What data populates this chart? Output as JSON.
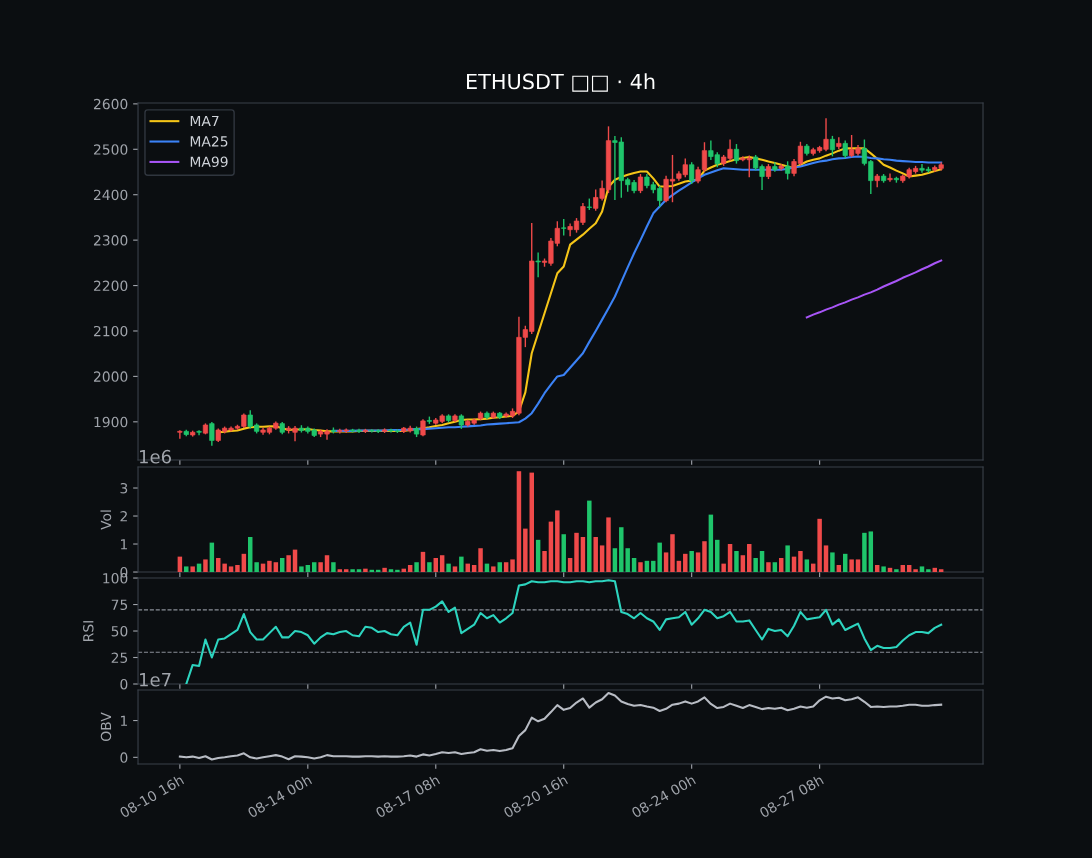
{
  "chart_data": [
    {
      "type": "candlestick",
      "title": "ETHUSDT □□ · 4h",
      "categories": [
        null,
        null,
        null,
        null,
        null,
        null,
        null,
        null,
        null,
        null,
        null,
        null,
        null,
        null,
        null,
        null,
        null,
        null,
        null,
        null,
        null,
        null,
        null,
        null,
        null,
        null,
        null,
        null,
        null,
        null,
        null,
        null,
        null,
        null,
        null,
        null,
        null,
        null,
        null,
        null,
        null,
        null,
        null,
        null,
        null,
        null,
        null,
        null,
        null,
        null,
        null,
        null,
        null,
        null,
        null,
        null,
        null,
        null,
        null,
        null,
        null,
        null,
        null,
        null,
        null,
        null,
        null,
        null,
        null,
        null,
        null,
        null,
        null,
        null,
        null,
        null,
        null,
        null,
        null,
        null,
        null,
        null,
        null,
        null,
        null,
        null,
        null,
        null,
        null,
        null,
        null,
        null,
        null,
        null,
        null,
        null,
        null,
        null,
        null,
        null,
        null,
        null,
        null,
        null,
        null,
        null,
        null,
        null,
        null,
        null,
        null,
        null,
        null,
        null,
        null,
        null,
        null,
        null,
        null,
        null
      ],
      "ohlc": [
        [
          1877,
          1880,
          1864,
          1879
        ],
        [
          1879,
          1881,
          1870,
          1872
        ],
        [
          1871,
          1879,
          1869,
          1877
        ],
        [
          1879,
          1880,
          1872,
          1877
        ],
        [
          1875,
          1895,
          1874,
          1893
        ],
        [
          1896,
          1898,
          1849,
          1859
        ],
        [
          1859,
          1884,
          1857,
          1882
        ],
        [
          1879,
          1888,
          1876,
          1886
        ],
        [
          1882,
          1888,
          1880,
          1886
        ],
        [
          1886,
          1892,
          1884,
          1890
        ],
        [
          1890,
          1917,
          1888,
          1915
        ],
        [
          1915,
          1924,
          1887,
          1890
        ],
        [
          1893,
          1895,
          1876,
          1879
        ],
        [
          1877,
          1886,
          1873,
          1882
        ],
        [
          1877,
          1888,
          1874,
          1886
        ],
        [
          1886,
          1899,
          1884,
          1897
        ],
        [
          1896,
          1898,
          1874,
          1877
        ],
        [
          1882,
          1889,
          1876,
          1886
        ],
        [
          1877,
          1889,
          1859,
          1886
        ],
        [
          1886,
          1891,
          1878,
          1881
        ],
        [
          1886,
          1888,
          1876,
          1879
        ],
        [
          1882,
          1884,
          1868,
          1870
        ],
        [
          1873,
          1881,
          1868,
          1879
        ],
        [
          1873,
          1882,
          1862,
          1879
        ],
        [
          1881,
          1886,
          1876,
          1879
        ],
        [
          1879,
          1883,
          1876,
          1881
        ],
        [
          1880,
          1884,
          1877,
          1882
        ],
        [
          1882,
          1883,
          1878,
          1880
        ],
        [
          1881,
          1883,
          1877,
          1879
        ],
        [
          1879,
          1883,
          1877,
          1881
        ],
        [
          1881,
          1882,
          1878,
          1880
        ],
        [
          1880,
          1882,
          1877,
          1879
        ],
        [
          1879,
          1884,
          1877,
          1882
        ],
        [
          1882,
          1883,
          1878,
          1880
        ],
        [
          1880,
          1882,
          1877,
          1879
        ],
        [
          1879,
          1887,
          1877,
          1886
        ],
        [
          1880,
          1890,
          1878,
          1886
        ],
        [
          1885,
          1888,
          1868,
          1873
        ],
        [
          1871,
          1904,
          1870,
          1902
        ],
        [
          1903,
          1910,
          1897,
          1901
        ],
        [
          1897,
          1907,
          1895,
          1904
        ],
        [
          1901,
          1915,
          1899,
          1913
        ],
        [
          1913,
          1915,
          1900,
          1903
        ],
        [
          1903,
          1915,
          1901,
          1913
        ],
        [
          1913,
          1915,
          1886,
          1893
        ],
        [
          1893,
          1903,
          1891,
          1901
        ],
        [
          1897,
          1906,
          1895,
          1904
        ],
        [
          1907,
          1921,
          1905,
          1919
        ],
        [
          1919,
          1921,
          1908,
          1910
        ],
        [
          1910,
          1921,
          1908,
          1919
        ],
        [
          1919,
          1920,
          1908,
          1910
        ],
        [
          1913,
          1919,
          1911,
          1917
        ],
        [
          1913,
          1928,
          1910,
          1923
        ],
        [
          1919,
          2130,
          1916,
          2086
        ],
        [
          2086,
          2110,
          2066,
          2103
        ],
        [
          2099,
          2336,
          2095,
          2254
        ],
        [
          2254,
          2271,
          2220,
          2252
        ],
        [
          2251,
          2258,
          2243,
          2254
        ],
        [
          2249,
          2303,
          2245,
          2298
        ],
        [
          2293,
          2340,
          2288,
          2326
        ],
        [
          2327,
          2345,
          2312,
          2326
        ],
        [
          2323,
          2335,
          2310,
          2330
        ],
        [
          2323,
          2347,
          2318,
          2342
        ],
        [
          2339,
          2380,
          2335,
          2374
        ],
        [
          2373,
          2390,
          2368,
          2372
        ],
        [
          2370,
          2410,
          2366,
          2394
        ],
        [
          2392,
          2430,
          2389,
          2414
        ],
        [
          2411,
          2549,
          2405,
          2519
        ],
        [
          2519,
          2528,
          2390,
          2515
        ],
        [
          2516,
          2525,
          2395,
          2431
        ],
        [
          2433,
          2436,
          2408,
          2422
        ],
        [
          2427,
          2431,
          2405,
          2409
        ],
        [
          2409,
          2444,
          2405,
          2439
        ],
        [
          2439,
          2444,
          2416,
          2420
        ],
        [
          2422,
          2427,
          2405,
          2411
        ],
        [
          2414,
          2418,
          2375,
          2387
        ],
        [
          2387,
          2440,
          2385,
          2434
        ],
        [
          2430,
          2486,
          2385,
          2434
        ],
        [
          2436,
          2450,
          2432,
          2446
        ],
        [
          2444,
          2478,
          2440,
          2466
        ],
        [
          2466,
          2470,
          2425,
          2431
        ],
        [
          2430,
          2460,
          2427,
          2455
        ],
        [
          2455,
          2514,
          2452,
          2497
        ],
        [
          2497,
          2518,
          2478,
          2484
        ],
        [
          2488,
          2492,
          2462,
          2468
        ],
        [
          2469,
          2486,
          2465,
          2483
        ],
        [
          2480,
          2520,
          2476,
          2500
        ],
        [
          2500,
          2510,
          2470,
          2475
        ],
        [
          2477,
          2483,
          2475,
          2480
        ],
        [
          2477,
          2485,
          2440,
          2480
        ],
        [
          2483,
          2486,
          2455,
          2459
        ],
        [
          2462,
          2465,
          2412,
          2440
        ],
        [
          2440,
          2466,
          2436,
          2462
        ],
        [
          2462,
          2470,
          2452,
          2455
        ],
        [
          2458,
          2466,
          2455,
          2463
        ],
        [
          2463,
          2472,
          2435,
          2447
        ],
        [
          2447,
          2477,
          2442,
          2473
        ],
        [
          2469,
          2515,
          2466,
          2507
        ],
        [
          2507,
          2510,
          2488,
          2491
        ],
        [
          2491,
          2502,
          2488,
          2499
        ],
        [
          2497,
          2506,
          2494,
          2504
        ],
        [
          2500,
          2567,
          2497,
          2522
        ],
        [
          2522,
          2528,
          2486,
          2499
        ],
        [
          2506,
          2525,
          2502,
          2513
        ],
        [
          2513,
          2518,
          2482,
          2486
        ],
        [
          2486,
          2530,
          2484,
          2499
        ],
        [
          2491,
          2508,
          2488,
          2502
        ],
        [
          2502,
          2520,
          2466,
          2469
        ],
        [
          2473,
          2475,
          2403,
          2431
        ],
        [
          2431,
          2444,
          2418,
          2441
        ],
        [
          2441,
          2444,
          2428,
          2431
        ],
        [
          2433,
          2445,
          2430,
          2436
        ],
        [
          2436,
          2438,
          2428,
          2433
        ],
        [
          2431,
          2443,
          2428,
          2441
        ],
        [
          2440,
          2458,
          2437,
          2455
        ],
        [
          2451,
          2462,
          2448,
          2458
        ],
        [
          2458,
          2466,
          2450,
          2454
        ],
        [
          2456,
          2460,
          2450,
          2453
        ],
        [
          2455,
          2463,
          2452,
          2460
        ],
        [
          2458,
          2470,
          2455,
          2466
        ]
      ],
      "colors": [
        "#f04a4a",
        "#1fc56b",
        "#f04a4a",
        "#1fc56b",
        "#f04a4a",
        "#1fc56b",
        "#f04a4a",
        "#f04a4a",
        "#f04a4a",
        "#f04a4a",
        "#f04a4a",
        "#1fc56b",
        "#1fc56b",
        "#f04a4a",
        "#f04a4a",
        "#f04a4a",
        "#1fc56b",
        "#f04a4a",
        "#f04a4a",
        "#1fc56b",
        "#1fc56b",
        "#1fc56b",
        "#f04a4a",
        "#f04a4a",
        "#1fc56b",
        "#f04a4a",
        "#f04a4a",
        "#1fc56b",
        "#1fc56b",
        "#f04a4a",
        "#1fc56b",
        "#1fc56b",
        "#f04a4a",
        "#1fc56b",
        "#1fc56b",
        "#f04a4a",
        "#f04a4a",
        "#1fc56b",
        "#f04a4a",
        "#1fc56b",
        "#f04a4a",
        "#f04a4a",
        "#1fc56b",
        "#f04a4a",
        "#1fc56b",
        "#f04a4a",
        "#f04a4a",
        "#f04a4a",
        "#1fc56b",
        "#f04a4a",
        "#1fc56b",
        "#f04a4a",
        "#f04a4a",
        "#f04a4a",
        "#f04a4a",
        "#f04a4a",
        "#1fc56b",
        "#f04a4a",
        "#f04a4a",
        "#f04a4a",
        "#1fc56b",
        "#f04a4a",
        "#f04a4a",
        "#f04a4a",
        "#1fc56b",
        "#f04a4a",
        "#f04a4a",
        "#f04a4a",
        "#1fc56b",
        "#1fc56b",
        "#1fc56b",
        "#1fc56b",
        "#f04a4a",
        "#1fc56b",
        "#1fc56b",
        "#1fc56b",
        "#f04a4a",
        "#f04a4a",
        "#f04a4a",
        "#f04a4a",
        "#1fc56b",
        "#f04a4a",
        "#f04a4a",
        "#1fc56b",
        "#1fc56b",
        "#f04a4a",
        "#f04a4a",
        "#1fc56b",
        "#f04a4a",
        "#f04a4a",
        "#1fc56b",
        "#1fc56b",
        "#f04a4a",
        "#1fc56b",
        "#f04a4a",
        "#1fc56b",
        "#f04a4a",
        "#f04a4a",
        "#1fc56b",
        "#f04a4a",
        "#f04a4a",
        "#f04a4a",
        "#1fc56b",
        "#f04a4a",
        "#1fc56b",
        "#f04a4a",
        "#f04a4a",
        "#1fc56b",
        "#1fc56b",
        "#f04a4a",
        "#1fc56b",
        "#f04a4a",
        "#1fc56b",
        "#f04a4a",
        "#f04a4a",
        "#f04a4a",
        "#1fc56b",
        "#1fc56b",
        "#f04a4a",
        "#f04a4a"
      ],
      "series": [
        {
          "name": "MA7",
          "type": "line",
          "color": "#f5c518",
          "values": [
            null,
            null,
            null,
            null,
            null,
            null,
            1877,
            1878,
            1880,
            1881,
            1885,
            1888,
            1889,
            1889,
            1890,
            1890,
            1886,
            1882,
            1883,
            1883,
            1884,
            1882,
            1881,
            1879,
            1879,
            1879,
            1879,
            1879,
            1880,
            1880,
            1880,
            1880,
            1880,
            1880,
            1880,
            1880,
            1882,
            1884,
            1886,
            1888,
            1891,
            1893,
            1897,
            1900,
            1904,
            1905,
            1905,
            1906,
            1907,
            1909,
            1910,
            1912,
            1913,
            1923,
            1965,
            2051,
            2095,
            2139,
            2183,
            2227,
            2242,
            2290,
            2301,
            2312,
            2325,
            2337,
            2363,
            2417,
            2433,
            2439,
            2444,
            2448,
            2451,
            2451,
            2436,
            2418,
            2418,
            2419,
            2424,
            2429,
            2431,
            2433,
            2453,
            2460,
            2466,
            2470,
            2474,
            2478,
            2481,
            2483,
            2480,
            2477,
            2473,
            2470,
            2466,
            2462,
            2458,
            2466,
            2473,
            2477,
            2480,
            2486,
            2491,
            2497,
            2502,
            2502,
            2502,
            2502,
            2491,
            2479,
            2466,
            2460,
            2453,
            2447,
            2440,
            2442,
            2444,
            2448,
            2452,
            2456
          ]
        },
        {
          "name": "MA25",
          "type": "line",
          "color": "#3b82f6",
          "values": [
            null,
            null,
            null,
            null,
            null,
            null,
            null,
            null,
            null,
            null,
            null,
            null,
            null,
            null,
            null,
            null,
            null,
            null,
            null,
            null,
            null,
            null,
            null,
            null,
            1880,
            1880,
            1880,
            1880,
            1881,
            1881,
            1881,
            1881,
            1881,
            1882,
            1882,
            1882,
            1883,
            1884,
            1884,
            1885,
            1886,
            1887,
            1888,
            1888,
            1889,
            1890,
            1891,
            1892,
            1894,
            1895,
            1896,
            1897,
            1898,
            1899,
            1907,
            1919,
            1940,
            1963,
            1982,
            2000,
            2003,
            2019,
            2035,
            2051,
            2076,
            2100,
            2125,
            2150,
            2176,
            2208,
            2240,
            2271,
            2300,
            2330,
            2359,
            2374,
            2389,
            2399,
            2409,
            2418,
            2427,
            2436,
            2444,
            2449,
            2454,
            2458,
            2457,
            2456,
            2455,
            2455,
            2455,
            2455,
            2455,
            2455,
            2455,
            2457,
            2460,
            2462,
            2466,
            2470,
            2473,
            2475,
            2478,
            2480,
            2481,
            2483,
            2484,
            2483,
            2481,
            2480,
            2478,
            2477,
            2475,
            2474,
            2473,
            2472,
            2472,
            2471,
            2471,
            2471
          ]
        },
        {
          "name": "MA99",
          "type": "line",
          "color": "#a855f7",
          "values": [
            null,
            null,
            null,
            null,
            null,
            null,
            null,
            null,
            null,
            null,
            null,
            null,
            null,
            null,
            null,
            null,
            null,
            null,
            null,
            null,
            null,
            null,
            null,
            null,
            null,
            null,
            null,
            null,
            null,
            null,
            null,
            null,
            null,
            null,
            null,
            null,
            null,
            null,
            null,
            null,
            null,
            null,
            null,
            null,
            null,
            null,
            null,
            null,
            null,
            null,
            null,
            null,
            null,
            null,
            null,
            null,
            null,
            null,
            null,
            null,
            null,
            null,
            null,
            null,
            null,
            null,
            null,
            null,
            null,
            null,
            null,
            null,
            null,
            null,
            null,
            null,
            null,
            null,
            null,
            null,
            null,
            null,
            null,
            null,
            null,
            null,
            null,
            null,
            null,
            null,
            null,
            null,
            null,
            null,
            null,
            null,
            null,
            null,
            2130,
            2136,
            2141,
            2147,
            2152,
            2158,
            2163,
            2169,
            2174,
            2180,
            2185,
            2191,
            2198,
            2204,
            2210,
            2217,
            2223,
            2229,
            2236,
            2242,
            2249,
            2255
          ]
        }
      ],
      "ylim": [
        1816,
        2602
      ],
      "yticks": [
        1900,
        2000,
        2100,
        2200,
        2300,
        2400,
        2500,
        2600
      ],
      "tick_labels": "y",
      "legend": "top left"
    },
    {
      "type": "bar",
      "ylabel": "Vol",
      "annotations": [
        "1e6"
      ],
      "categories": [
        null,
        null,
        null,
        null,
        null,
        null,
        null,
        null,
        null,
        null,
        null,
        null,
        null,
        null,
        null,
        null,
        null,
        null,
        null,
        null,
        null,
        null,
        null,
        null,
        null,
        null,
        null,
        null,
        null,
        null,
        null,
        null,
        null,
        null,
        null,
        null,
        null,
        null,
        null,
        null,
        null,
        null,
        null,
        null,
        null,
        null,
        null,
        null,
        null,
        null,
        null,
        null,
        null,
        null,
        null,
        null,
        null,
        null,
        null,
        null,
        null,
        null,
        null,
        null,
        null,
        null,
        null,
        null,
        null,
        null,
        null,
        null,
        null,
        null,
        null,
        null,
        null,
        null,
        null,
        null,
        null,
        null,
        null,
        null,
        null,
        null,
        null,
        null,
        null,
        null,
        null,
        null,
        null,
        null,
        null,
        null,
        null,
        null,
        null,
        null,
        null,
        null,
        null,
        null,
        null,
        null,
        null,
        null,
        null,
        null,
        null,
        null,
        null,
        null,
        null,
        null,
        null,
        null,
        null,
        null
      ],
      "values": [
        0.55,
        0.2,
        0.2,
        0.3,
        0.45,
        1.05,
        0.5,
        0.3,
        0.2,
        0.25,
        0.65,
        1.25,
        0.35,
        0.3,
        0.4,
        0.35,
        0.5,
        0.6,
        0.8,
        0.2,
        0.25,
        0.35,
        0.35,
        0.6,
        0.35,
        0.1,
        0.1,
        0.1,
        0.1,
        0.12,
        0.08,
        0.08,
        0.15,
        0.1,
        0.08,
        0.12,
        0.25,
        0.35,
        0.72,
        0.35,
        0.5,
        0.6,
        0.3,
        0.2,
        0.55,
        0.3,
        0.25,
        0.85,
        0.3,
        0.2,
        0.35,
        0.35,
        0.45,
        3.6,
        1.55,
        3.55,
        1.15,
        0.75,
        1.8,
        2.2,
        1.35,
        0.5,
        1.4,
        1.25,
        2.55,
        1.25,
        0.95,
        1.95,
        0.85,
        1.6,
        0.85,
        0.5,
        0.35,
        0.4,
        0.4,
        1.05,
        0.7,
        1.35,
        0.4,
        0.65,
        0.75,
        0.7,
        1.1,
        2.05,
        1.15,
        0.3,
        1.0,
        0.75,
        0.6,
        1.0,
        0.5,
        0.75,
        0.35,
        0.35,
        0.5,
        0.95,
        0.55,
        0.75,
        0.45,
        0.3,
        1.9,
        0.95,
        0.7,
        0.25,
        0.65,
        0.45,
        0.45,
        1.4,
        1.45,
        0.25,
        0.2,
        0.15,
        0.1,
        0.25,
        0.25,
        0.1,
        0.2,
        0.1,
        0.15,
        0.1
      ],
      "colors": [
        "#f04a4a",
        "#1fc56b",
        "#f04a4a",
        "#1fc56b",
        "#f04a4a",
        "#1fc56b",
        "#f04a4a",
        "#f04a4a",
        "#f04a4a",
        "#f04a4a",
        "#f04a4a",
        "#1fc56b",
        "#1fc56b",
        "#f04a4a",
        "#f04a4a",
        "#f04a4a",
        "#1fc56b",
        "#f04a4a",
        "#f04a4a",
        "#1fc56b",
        "#1fc56b",
        "#1fc56b",
        "#f04a4a",
        "#f04a4a",
        "#1fc56b",
        "#f04a4a",
        "#f04a4a",
        "#1fc56b",
        "#1fc56b",
        "#f04a4a",
        "#1fc56b",
        "#1fc56b",
        "#f04a4a",
        "#1fc56b",
        "#1fc56b",
        "#f04a4a",
        "#f04a4a",
        "#1fc56b",
        "#f04a4a",
        "#1fc56b",
        "#f04a4a",
        "#f04a4a",
        "#1fc56b",
        "#f04a4a",
        "#1fc56b",
        "#f04a4a",
        "#f04a4a",
        "#f04a4a",
        "#1fc56b",
        "#f04a4a",
        "#1fc56b",
        "#f04a4a",
        "#f04a4a",
        "#f04a4a",
        "#f04a4a",
        "#f04a4a",
        "#1fc56b",
        "#f04a4a",
        "#f04a4a",
        "#f04a4a",
        "#1fc56b",
        "#f04a4a",
        "#f04a4a",
        "#f04a4a",
        "#1fc56b",
        "#f04a4a",
        "#f04a4a",
        "#f04a4a",
        "#1fc56b",
        "#1fc56b",
        "#1fc56b",
        "#1fc56b",
        "#f04a4a",
        "#1fc56b",
        "#1fc56b",
        "#1fc56b",
        "#f04a4a",
        "#f04a4a",
        "#f04a4a",
        "#f04a4a",
        "#1fc56b",
        "#f04a4a",
        "#f04a4a",
        "#1fc56b",
        "#1fc56b",
        "#f04a4a",
        "#f04a4a",
        "#1fc56b",
        "#f04a4a",
        "#f04a4a",
        "#1fc56b",
        "#1fc56b",
        "#f04a4a",
        "#1fc56b",
        "#f04a4a",
        "#1fc56b",
        "#f04a4a",
        "#f04a4a",
        "#1fc56b",
        "#f04a4a",
        "#f04a4a",
        "#f04a4a",
        "#1fc56b",
        "#f04a4a",
        "#1fc56b",
        "#f04a4a",
        "#f04a4a",
        "#1fc56b",
        "#1fc56b",
        "#f04a4a",
        "#1fc56b",
        "#f04a4a",
        "#1fc56b",
        "#f04a4a",
        "#f04a4a",
        "#f04a4a",
        "#1fc56b",
        "#1fc56b",
        "#f04a4a",
        "#f04a4a"
      ],
      "ylim": [
        0,
        3.75
      ],
      "yticks": [
        0,
        1,
        2,
        3
      ],
      "tick_labels": "y"
    },
    {
      "type": "line",
      "ylabel": "RSI",
      "categories": [
        null,
        null,
        null,
        null,
        null,
        null,
        null,
        null,
        null,
        null,
        null,
        null,
        null,
        null,
        null,
        null,
        null,
        null,
        null,
        null,
        null,
        null,
        null,
        null,
        null,
        null,
        null,
        null,
        null,
        null,
        null,
        null,
        null,
        null,
        null,
        null,
        null,
        null,
        null,
        null,
        null,
        null,
        null,
        null,
        null,
        null,
        null,
        null,
        null,
        null,
        null,
        null,
        null,
        null,
        null,
        null,
        null,
        null,
        null,
        null,
        null,
        null,
        null,
        null,
        null,
        null,
        null,
        null,
        null,
        null,
        null,
        null,
        null,
        null,
        null,
        null,
        null,
        null,
        null,
        null,
        null,
        null,
        null,
        null,
        null,
        null,
        null,
        null,
        null,
        null,
        null,
        null,
        null,
        null,
        null,
        null,
        null,
        null,
        null,
        null,
        null,
        null,
        null,
        null,
        null,
        null,
        null,
        null,
        null,
        null,
        null,
        null,
        null,
        null,
        null,
        null,
        null,
        null,
        null,
        null
      ],
      "series": [
        {
          "color": "#2dd4bf",
          "values": [
            null,
            0,
            18,
            17,
            42,
            25,
            42,
            43,
            47,
            51,
            66,
            49,
            42,
            42,
            48,
            54,
            44,
            44,
            50,
            49,
            46,
            38,
            44,
            48,
            47,
            49,
            50,
            46,
            45,
            54,
            53,
            49,
            50,
            47,
            46,
            54,
            58,
            37,
            70,
            70,
            73,
            78,
            68,
            72,
            48,
            52,
            56,
            67,
            62,
            65,
            58,
            62,
            67,
            93,
            94,
            97,
            96,
            96,
            97,
            97,
            96,
            96,
            97,
            97,
            96,
            97,
            97,
            98,
            97,
            68,
            66,
            62,
            67,
            62,
            59,
            51,
            61,
            62,
            63,
            68,
            56,
            62,
            70,
            68,
            62,
            64,
            68,
            59,
            59,
            60,
            51,
            42,
            52,
            50,
            51,
            45,
            55,
            68,
            61,
            62,
            63,
            70,
            56,
            61,
            51,
            54,
            57,
            43,
            32,
            36,
            34,
            34,
            35,
            41,
            46,
            49,
            49,
            48,
            53,
            56
          ]
        }
      ],
      "ref_lines": [
        {
          "axis": "y",
          "value": 70,
          "color": "#8a8f98",
          "line_style": "dashed"
        },
        {
          "axis": "y",
          "value": 30,
          "color": "#8a8f98",
          "line_style": "dashed"
        }
      ],
      "ylim": [
        0,
        100
      ],
      "yticks": [
        0,
        25,
        50,
        75,
        100
      ],
      "tick_labels": "y"
    },
    {
      "type": "line",
      "ylabel": "OBV",
      "annotations": [
        "1e7"
      ],
      "categories": [
        "08-10 16h",
        null,
        null,
        null,
        null,
        null,
        null,
        null,
        null,
        null,
        null,
        null,
        null,
        null,
        null,
        null,
        null,
        null,
        null,
        null,
        "08-14 00h",
        null,
        null,
        null,
        null,
        null,
        null,
        null,
        null,
        null,
        null,
        null,
        null,
        null,
        null,
        null,
        null,
        null,
        null,
        null,
        "08-17 08h",
        null,
        null,
        null,
        null,
        null,
        null,
        null,
        null,
        null,
        null,
        null,
        null,
        null,
        null,
        null,
        null,
        null,
        null,
        null,
        "08-20 16h",
        null,
        null,
        null,
        null,
        null,
        null,
        null,
        null,
        null,
        null,
        null,
        null,
        null,
        null,
        null,
        null,
        null,
        null,
        null,
        "08-24 00h",
        null,
        null,
        null,
        null,
        null,
        null,
        null,
        null,
        null,
        null,
        null,
        null,
        null,
        null,
        null,
        null,
        null,
        null,
        null,
        "08-27 08h",
        null,
        null,
        null,
        null,
        null,
        null,
        null,
        null,
        null,
        null,
        null,
        null,
        null,
        null,
        null,
        null,
        null,
        null,
        null
      ],
      "series": [
        {
          "color": "#b8bcc4",
          "values": [
            0.02,
            0,
            0.02,
            -0.02,
            0.03,
            -0.06,
            -0.02,
            0,
            0.03,
            0.05,
            0.11,
            0,
            -0.03,
            0,
            0.03,
            0.06,
            0.02,
            -0.05,
            0.03,
            0.02,
            0,
            -0.03,
            0,
            0.06,
            0.03,
            0.03,
            0.03,
            0.02,
            0.02,
            0.03,
            0.03,
            0.02,
            0.03,
            0.02,
            0.02,
            0.03,
            0.05,
            0.02,
            0.08,
            0.05,
            0.09,
            0.14,
            0.12,
            0.14,
            0.09,
            0.12,
            0.14,
            0.22,
            0.18,
            0.2,
            0.17,
            0.2,
            0.25,
            0.58,
            0.74,
            1.08,
            0.98,
            1.05,
            1.23,
            1.42,
            1.29,
            1.34,
            1.49,
            1.6,
            1.35,
            1.49,
            1.58,
            1.75,
            1.68,
            1.52,
            1.45,
            1.4,
            1.42,
            1.38,
            1.35,
            1.26,
            1.32,
            1.43,
            1.46,
            1.52,
            1.46,
            1.52,
            1.63,
            1.45,
            1.34,
            1.37,
            1.46,
            1.4,
            1.34,
            1.42,
            1.37,
            1.31,
            1.34,
            1.32,
            1.35,
            1.28,
            1.32,
            1.38,
            1.35,
            1.38,
            1.55,
            1.65,
            1.6,
            1.62,
            1.55,
            1.58,
            1.63,
            1.51,
            1.37,
            1.38,
            1.37,
            1.38,
            1.38,
            1.4,
            1.43,
            1.43,
            1.4,
            1.4,
            1.42,
            1.43
          ]
        }
      ],
      "ylim": [
        -0.18,
        1.83
      ],
      "yticks": [
        0,
        1
      ]
    }
  ]
}
